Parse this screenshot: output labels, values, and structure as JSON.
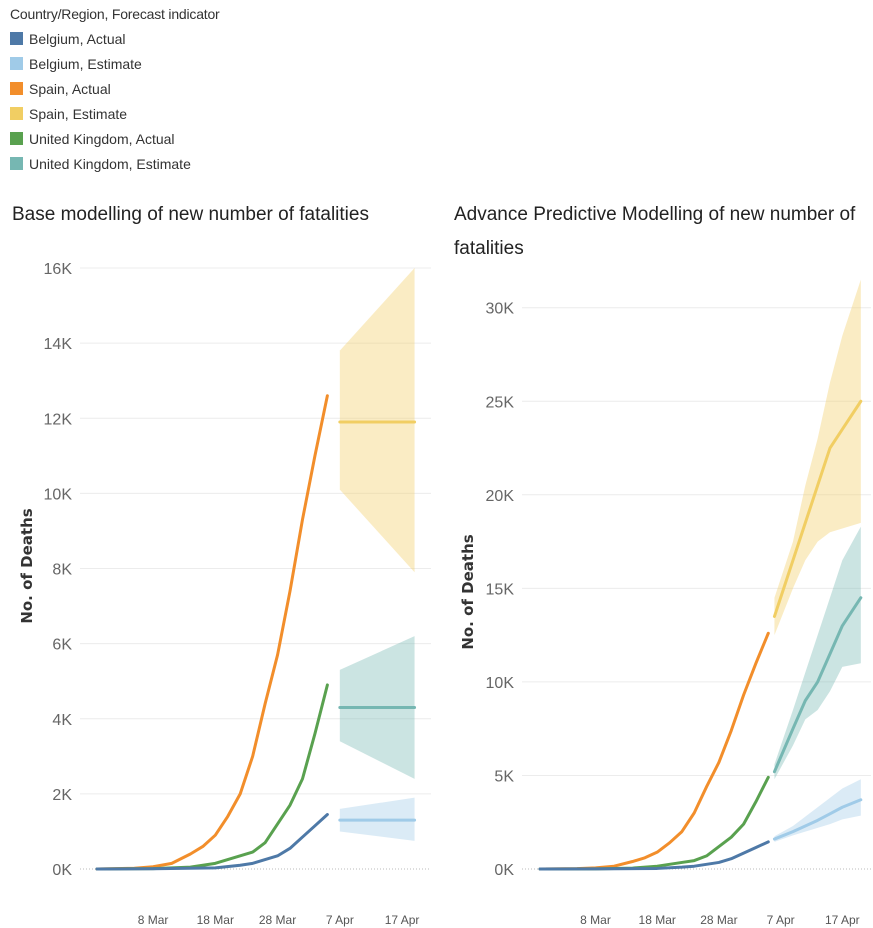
{
  "legend": {
    "title": "Country/Region, Forecast indicator",
    "items": [
      {
        "label": "Belgium, Actual",
        "color": "#4e79a7"
      },
      {
        "label": "Belgium, Estimate",
        "color": "#a0cbe8"
      },
      {
        "label": "Spain, Actual",
        "color": "#f28e2b"
      },
      {
        "label": "Spain, Estimate",
        "color": "#f1ce63"
      },
      {
        "label": "United Kingdom, Actual",
        "color": "#59a14f"
      },
      {
        "label": "United Kingdom, Estimate",
        "color": "#76b7b2"
      }
    ]
  },
  "chart_data": [
    {
      "type": "line",
      "title": "Base modelling of new number of fatalities",
      "ylabel": "No. of Deaths",
      "xlabel": "",
      "ylim": [
        0,
        16000
      ],
      "yticks": [
        "0K",
        "2K",
        "4K",
        "6K",
        "8K",
        "10K",
        "12K",
        "14K",
        "16K"
      ],
      "xticks": [
        "8 Mar",
        "18 Mar",
        "28 Mar",
        "7 Apr",
        "17 Apr"
      ],
      "series": [
        {
          "name": "Spain, Actual",
          "color": "#f28e2b",
          "x": [
            "2020-02-28",
            "2020-03-05",
            "2020-03-08",
            "2020-03-11",
            "2020-03-14",
            "2020-03-16",
            "2020-03-18",
            "2020-03-20",
            "2020-03-22",
            "2020-03-24",
            "2020-03-26",
            "2020-03-28",
            "2020-03-30",
            "2020-04-01",
            "2020-04-03",
            "2020-04-05"
          ],
          "y": [
            0,
            20,
            60,
            150,
            400,
            600,
            900,
            1400,
            2000,
            3000,
            4400,
            5700,
            7400,
            9300,
            11000,
            12600
          ]
        },
        {
          "name": "United Kingdom, Actual",
          "color": "#59a14f",
          "x": [
            "2020-02-28",
            "2020-03-08",
            "2020-03-14",
            "2020-03-18",
            "2020-03-20",
            "2020-03-22",
            "2020-03-24",
            "2020-03-26",
            "2020-03-28",
            "2020-03-30",
            "2020-04-01",
            "2020-04-03",
            "2020-04-05"
          ],
          "y": [
            0,
            10,
            50,
            150,
            250,
            350,
            450,
            700,
            1200,
            1700,
            2400,
            3600,
            4900
          ]
        },
        {
          "name": "Belgium, Actual",
          "color": "#4e79a7",
          "x": [
            "2020-02-28",
            "2020-03-08",
            "2020-03-18",
            "2020-03-22",
            "2020-03-24",
            "2020-03-26",
            "2020-03-28",
            "2020-03-30",
            "2020-04-01",
            "2020-04-03",
            "2020-04-05"
          ],
          "y": [
            0,
            5,
            30,
            100,
            150,
            250,
            350,
            550,
            850,
            1150,
            1450
          ]
        },
        {
          "name": "Spain, Estimate",
          "color": "#f1ce63",
          "x": [
            "2020-04-07",
            "2020-04-19"
          ],
          "y": [
            11900,
            11900
          ],
          "upper": [
            13800,
            16000
          ],
          "lower": [
            10100,
            7900
          ]
        },
        {
          "name": "United Kingdom, Estimate",
          "color": "#76b7b2",
          "x": [
            "2020-04-07",
            "2020-04-19"
          ],
          "y": [
            4300,
            4300
          ],
          "upper": [
            5300,
            6200
          ],
          "lower": [
            3400,
            2400
          ]
        },
        {
          "name": "Belgium, Estimate",
          "color": "#a0cbe8",
          "x": [
            "2020-04-07",
            "2020-04-19"
          ],
          "y": [
            1300,
            1300
          ],
          "upper": [
            1600,
            1900
          ],
          "lower": [
            1000,
            750
          ]
        }
      ]
    },
    {
      "type": "line",
      "title": "Advance Predictive Modelling of new number of fatalities",
      "ylabel": "No. of Deaths",
      "xlabel": "",
      "ylim": [
        0,
        31000
      ],
      "yticks": [
        "0K",
        "5K",
        "10K",
        "15K",
        "20K",
        "25K",
        "30K"
      ],
      "xticks": [
        "8 Mar",
        "18 Mar",
        "28 Mar",
        "7 Apr",
        "17 Apr"
      ],
      "series": [
        {
          "name": "Spain, Actual",
          "color": "#f28e2b",
          "x": [
            "2020-02-28",
            "2020-03-05",
            "2020-03-08",
            "2020-03-11",
            "2020-03-14",
            "2020-03-16",
            "2020-03-18",
            "2020-03-20",
            "2020-03-22",
            "2020-03-24",
            "2020-03-26",
            "2020-03-28",
            "2020-03-30",
            "2020-04-01",
            "2020-04-03",
            "2020-04-05"
          ],
          "y": [
            0,
            20,
            60,
            150,
            400,
            600,
            900,
            1400,
            2000,
            3000,
            4400,
            5700,
            7400,
            9300,
            11000,
            12600
          ]
        },
        {
          "name": "United Kingdom, Actual",
          "color": "#59a14f",
          "x": [
            "2020-02-28",
            "2020-03-08",
            "2020-03-14",
            "2020-03-18",
            "2020-03-20",
            "2020-03-22",
            "2020-03-24",
            "2020-03-26",
            "2020-03-28",
            "2020-03-30",
            "2020-04-01",
            "2020-04-03",
            "2020-04-05"
          ],
          "y": [
            0,
            10,
            50,
            150,
            250,
            350,
            450,
            700,
            1200,
            1700,
            2400,
            3600,
            4900
          ]
        },
        {
          "name": "Belgium, Actual",
          "color": "#4e79a7",
          "x": [
            "2020-02-28",
            "2020-03-08",
            "2020-03-18",
            "2020-03-22",
            "2020-03-24",
            "2020-03-26",
            "2020-03-28",
            "2020-03-30",
            "2020-04-01",
            "2020-04-03",
            "2020-04-05"
          ],
          "y": [
            0,
            5,
            30,
            100,
            150,
            250,
            350,
            550,
            850,
            1150,
            1450
          ]
        },
        {
          "name": "Spain, Estimate",
          "color": "#f1ce63",
          "x": [
            "2020-04-06",
            "2020-04-09",
            "2020-04-11",
            "2020-04-13",
            "2020-04-15",
            "2020-04-17",
            "2020-04-20"
          ],
          "y": [
            13500,
            16500,
            18500,
            20500,
            22500,
            23500,
            25000
          ],
          "upper": [
            14500,
            17500,
            20500,
            23000,
            26000,
            28500,
            31500
          ],
          "lower": [
            12500,
            15000,
            16500,
            17500,
            18000,
            18200,
            18500
          ]
        },
        {
          "name": "United Kingdom, Estimate",
          "color": "#76b7b2",
          "x": [
            "2020-04-06",
            "2020-04-09",
            "2020-04-11",
            "2020-04-13",
            "2020-04-15",
            "2020-04-17",
            "2020-04-20"
          ],
          "y": [
            5200,
            7500,
            9000,
            10000,
            11500,
            13000,
            14500
          ],
          "upper": [
            5600,
            8500,
            10500,
            12500,
            14500,
            16500,
            18300
          ],
          "lower": [
            4800,
            6600,
            8000,
            8500,
            9500,
            10800,
            11000
          ]
        },
        {
          "name": "Belgium, Estimate",
          "color": "#a0cbe8",
          "x": [
            "2020-04-06",
            "2020-04-09",
            "2020-04-11",
            "2020-04-13",
            "2020-04-15",
            "2020-04-17",
            "2020-04-20"
          ],
          "y": [
            1600,
            2000,
            2300,
            2600,
            2950,
            3300,
            3700
          ],
          "upper": [
            1750,
            2300,
            2800,
            3300,
            3800,
            4300,
            4800
          ],
          "lower": [
            1450,
            1800,
            2000,
            2200,
            2400,
            2650,
            2850
          ]
        }
      ]
    }
  ]
}
